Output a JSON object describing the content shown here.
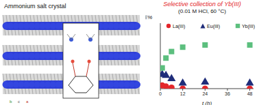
{
  "figure": {
    "label": "Ammonium salt crystal",
    "axis_labels": [
      "b",
      "c",
      "a"
    ]
  },
  "chart_data": {
    "type": "scatter",
    "title": "Selective collection of Yb(III)",
    "subtitle": "(0.01 M HCl, 60 °C)",
    "x_label": "t (h)",
    "y_label": "E%",
    "x": [
      1,
      3,
      6,
      12,
      24,
      48
    ],
    "xlim": [
      0,
      50
    ],
    "xticks": [
      0,
      12,
      24,
      36,
      48
    ],
    "ylim": [
      0,
      60
    ],
    "yticks": [
      0,
      20,
      40,
      60
    ],
    "tick_labels": "x",
    "grid": false,
    "legend": "top",
    "series": [
      {
        "name": "La(III)",
        "color": "#e3262b",
        "marker": "circle",
        "values": [
          3,
          2,
          1,
          0,
          0,
          0
        ]
      },
      {
        "name": "Eu(III)",
        "color": "#1f2d7a",
        "marker": "triangle",
        "values": [
          13,
          12,
          9,
          5,
          6,
          5
        ]
      },
      {
        "name": "Yb(III)",
        "color": "#5cbf7e",
        "marker": "square",
        "values": [
          19,
          28,
          34,
          38,
          40,
          40
        ]
      }
    ]
  }
}
